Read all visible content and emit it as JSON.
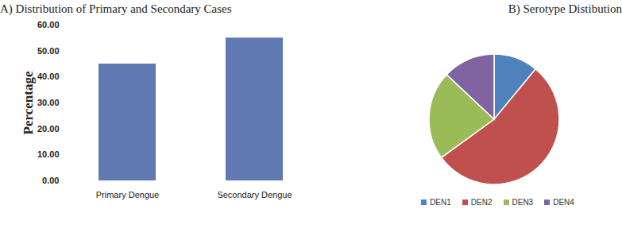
{
  "chart_data": [
    {
      "type": "bar",
      "title": "A) Distribution of Primary and Secondary Cases",
      "categories": [
        "Primary Dengue",
        "Secondary Dengue"
      ],
      "values": [
        45,
        55
      ],
      "color": "#6079b2",
      "y_label": "Percentage",
      "ylim": [
        0,
        60
      ],
      "yticks": [
        {
          "value": 0,
          "label": "0.00"
        },
        {
          "value": 10,
          "label": "10.00"
        },
        {
          "value": 20,
          "label": "20.00"
        },
        {
          "value": 30,
          "label": "30.00"
        },
        {
          "value": 40,
          "label": "40.00"
        },
        {
          "value": 50,
          "label": "50.00"
        },
        {
          "value": 60,
          "label": "60.00"
        }
      ],
      "grid": false
    },
    {
      "type": "pie",
      "title": "B) Serotype Distibution",
      "categories": [
        "DEN1",
        "DEN2",
        "DEN3",
        "DEN4"
      ],
      "values": [
        11,
        54,
        22,
        13
      ],
      "colors": [
        "#4f81bd",
        "#c0504d",
        "#9bbb59",
        "#8064a2"
      ],
      "legend": "bottom"
    }
  ]
}
